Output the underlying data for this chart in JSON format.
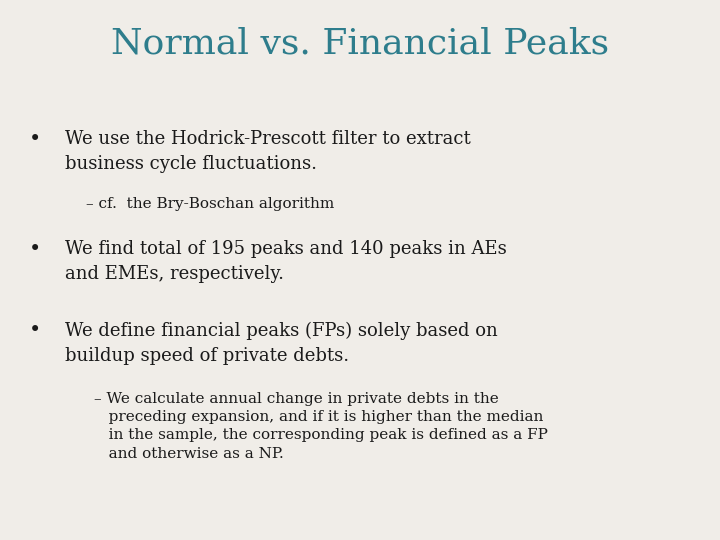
{
  "title": "Normal vs. Financial Peaks",
  "title_color": "#2E7D8C",
  "background_color": "#F0EDE8",
  "bullet1": "We use the Hodrick-Prescott filter to extract\nbusiness cycle fluctuations.",
  "sub1": "– cf.  the Bry-Boschan algorithm",
  "bullet2": "We find total of 195 peaks and 140 peaks in AEs\nand EMEs, respectively.",
  "bullet3": "We define financial peaks (FPs) solely based on\nbuildup speed of private debts.",
  "sub2": "– We calculate annual change in private debts in the\n   preceding expansion, and if it is higher than the median\n   in the sample, the corresponding peak is defined as a FP\n   and otherwise as a NP.",
  "text_color": "#1a1a1a",
  "bullet_color": "#1a1a1a",
  "title_fontsize": 26,
  "bullet_fontsize": 13,
  "sub_fontsize": 11
}
